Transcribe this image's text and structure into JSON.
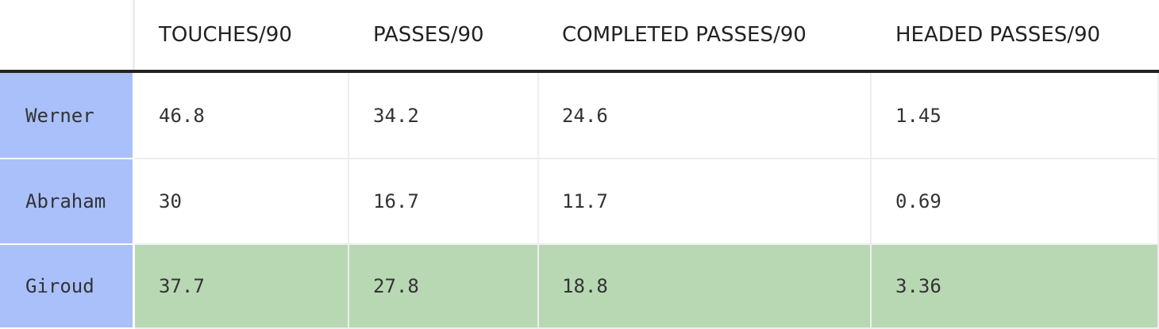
{
  "table": {
    "columns": [
      "TOUCHES/90",
      "PASSES/90",
      "COMPLETED PASSES/90",
      "HEADED PASSES/90"
    ],
    "rows": [
      {
        "name": "Werner",
        "cells": [
          "46.8",
          "34.2",
          "24.6",
          "1.45"
        ]
      },
      {
        "name": "Abraham",
        "cells": [
          "30",
          "16.7",
          "11.7",
          "0.69"
        ]
      },
      {
        "name": "Giroud",
        "cells": [
          "37.7",
          "27.8",
          "18.8",
          "3.36"
        ]
      }
    ]
  }
}
